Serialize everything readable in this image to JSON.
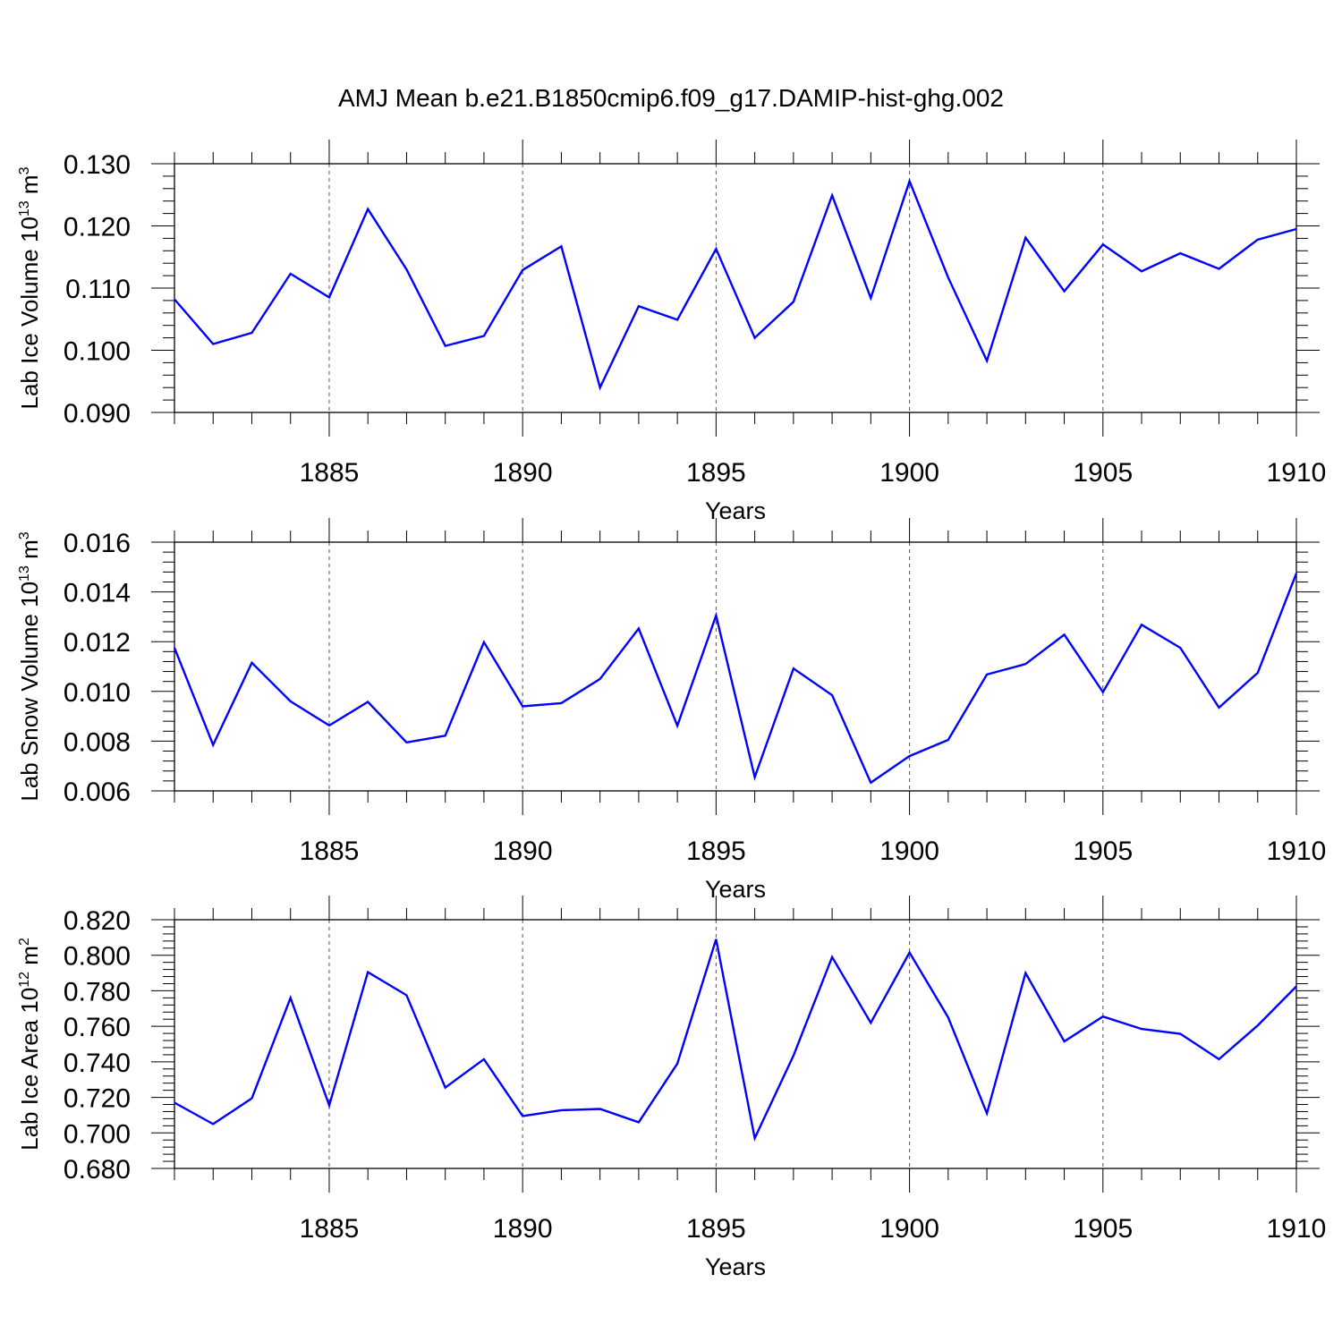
{
  "title": "AMJ Mean b.e21.B1850cmip6.f09_g17.DAMIP-hist-ghg.002",
  "colors": {
    "line": "#0000ff",
    "axis": "#000000",
    "grid": "#555555"
  },
  "chart_data": [
    {
      "type": "line",
      "ylabel": "Lab Ice Volume 10",
      "ylabel_exp": "13",
      "ylabel_unit": "m",
      "ylabel_unit_exp": "3",
      "xlabel": "Years",
      "xlim": [
        1881,
        1910
      ],
      "ylim": [
        0.09,
        0.13
      ],
      "xticks": [
        "1885",
        "1890",
        "1895",
        "1900",
        "1905",
        "1910"
      ],
      "yticks": [
        "0.090",
        "0.100",
        "0.110",
        "0.120",
        "0.130"
      ],
      "grid": "vertical dashed at major x ticks",
      "series": [
        {
          "x": [
            1881,
            1882,
            1883,
            1884,
            1885,
            1886,
            1887,
            1888,
            1889,
            1890,
            1891,
            1892,
            1893,
            1894,
            1895,
            1896,
            1897,
            1898,
            1899,
            1900,
            1901,
            1902,
            1903,
            1904,
            1905,
            1906,
            1907,
            1908,
            1909,
            1910
          ],
          "values": [
            0.1082,
            0.101,
            0.1028,
            0.1123,
            0.1085,
            0.1227,
            0.113,
            0.1007,
            0.1023,
            0.1129,
            0.1167,
            0.094,
            0.1071,
            0.1049,
            0.1163,
            0.102,
            0.1078,
            0.1249,
            0.1084,
            0.1272,
            0.1117,
            0.0983,
            0.1181,
            0.1095,
            0.117,
            0.1127,
            0.1156,
            0.1131,
            0.1178,
            0.1195
          ]
        }
      ]
    },
    {
      "type": "line",
      "ylabel": "Lab Snow Volume 10",
      "ylabel_exp": "13",
      "ylabel_unit": "m",
      "ylabel_unit_exp": "3",
      "xlabel": "Years",
      "xlim": [
        1881,
        1910
      ],
      "ylim": [
        0.006,
        0.016
      ],
      "xticks": [
        "1885",
        "1890",
        "1895",
        "1900",
        "1905",
        "1910"
      ],
      "yticks": [
        "0.006",
        "0.008",
        "0.010",
        "0.012",
        "0.014",
        "0.016"
      ],
      "grid": "vertical dashed at major x ticks",
      "series": [
        {
          "x": [
            1881,
            1882,
            1883,
            1884,
            1885,
            1886,
            1887,
            1888,
            1889,
            1890,
            1891,
            1892,
            1893,
            1894,
            1895,
            1896,
            1897,
            1898,
            1899,
            1900,
            1901,
            1902,
            1903,
            1904,
            1905,
            1906,
            1907,
            1908,
            1909,
            1910
          ],
          "values": [
            0.01175,
            0.00785,
            0.01115,
            0.0096,
            0.00863,
            0.00958,
            0.00795,
            0.00822,
            0.01198,
            0.0094,
            0.00953,
            0.0105,
            0.01253,
            0.00862,
            0.01305,
            0.00655,
            0.01092,
            0.00985,
            0.00633,
            0.0074,
            0.00805,
            0.01068,
            0.0111,
            0.01228,
            0.00997,
            0.01268,
            0.01175,
            0.00935,
            0.01075,
            0.01475
          ]
        }
      ]
    },
    {
      "type": "line",
      "ylabel": "Lab Ice Area 10",
      "ylabel_exp": "12",
      "ylabel_unit": "m",
      "ylabel_unit_exp": "2",
      "xlabel": "Years",
      "xlim": [
        1881,
        1910
      ],
      "ylim": [
        0.68,
        0.82
      ],
      "xticks": [
        "1885",
        "1890",
        "1895",
        "1900",
        "1905",
        "1910"
      ],
      "yticks": [
        "0.680",
        "0.700",
        "0.720",
        "0.740",
        "0.760",
        "0.780",
        "0.800",
        "0.820"
      ],
      "grid": "vertical dashed at major x ticks",
      "series": [
        {
          "x": [
            1881,
            1882,
            1883,
            1884,
            1885,
            1886,
            1887,
            1888,
            1889,
            1890,
            1891,
            1892,
            1893,
            1894,
            1895,
            1896,
            1897,
            1898,
            1899,
            1900,
            1901,
            1902,
            1903,
            1904,
            1905,
            1906,
            1907,
            1908,
            1909,
            1910
          ],
          "values": [
            0.717,
            0.705,
            0.7195,
            0.776,
            0.7155,
            0.7905,
            0.7775,
            0.7255,
            0.7415,
            0.7095,
            0.7128,
            0.7135,
            0.706,
            0.739,
            0.809,
            0.697,
            0.7435,
            0.799,
            0.762,
            0.8015,
            0.765,
            0.711,
            0.79,
            0.7515,
            0.7655,
            0.7585,
            0.7558,
            0.7415,
            0.7605,
            0.7825
          ]
        }
      ]
    }
  ]
}
